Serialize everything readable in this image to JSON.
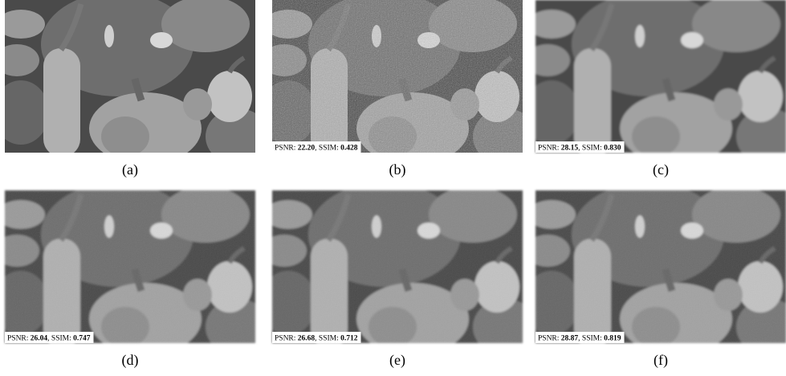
{
  "panels": [
    {
      "caption": "(a)"
    },
    {
      "caption": "(b)",
      "psnr_label": "PSNR:",
      "psnr": "22.20",
      "ssim_label": ", SSIM:",
      "ssim": "0.428"
    },
    {
      "caption": "(c)",
      "psnr_label": "PSNR:",
      "psnr": "28.15",
      "ssim_label": ", SSIM:",
      "ssim": "0.830"
    },
    {
      "caption": "(d)",
      "psnr_label": "PSNR:",
      "psnr": "26.04",
      "ssim_label": ", SSIM:",
      "ssim": "0.747"
    },
    {
      "caption": "(e)",
      "psnr_label": "PSNR:",
      "psnr": "26.68",
      "ssim_label": ", SSIM:",
      "ssim": "0.712"
    },
    {
      "caption": "(f)",
      "psnr_label": "PSNR:",
      "psnr": "28.87",
      "ssim_label": ", SSIM:",
      "ssim": "0.819"
    }
  ]
}
